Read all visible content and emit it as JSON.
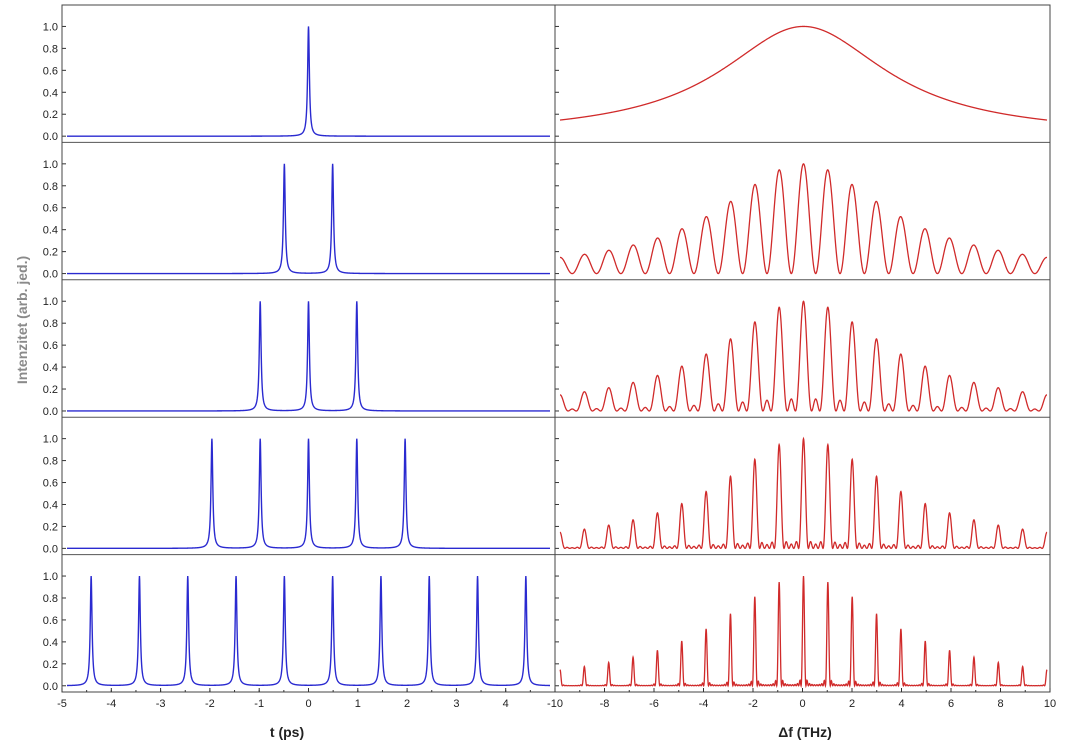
{
  "chart_data": {
    "type": "line",
    "ylabel": "Intenzitet (arb. jed.)",
    "y_ticks": [
      "0.0",
      "0.2",
      "0.4",
      "0.6",
      "0.8",
      "1.0"
    ],
    "ylim": [
      0,
      1.05
    ],
    "left": {
      "xlabel": "t (ps)",
      "xlim": [
        -5,
        5
      ],
      "x_ticks": [
        "-5",
        "-4",
        "-3",
        "-2",
        "-1",
        "0",
        "1",
        "2",
        "3",
        "4",
        "5"
      ],
      "color": "#2a2ad0"
    },
    "right": {
      "xlabel": "Δf (THz)",
      "xlim": [
        -10,
        10
      ],
      "x_ticks": [
        "-10",
        "-8",
        "-6",
        "-4",
        "-2",
        "0",
        "2",
        "4",
        "6",
        "8",
        "10"
      ],
      "color": "#d02a2a"
    },
    "rows": [
      {
        "time_pulse_peaks_ps": [
          0
        ],
        "spectrum": {
          "n_pulses": 1,
          "spacing_thz": null,
          "envelope_fwhm_thz": 8.3,
          "peak": 1.0
        }
      },
      {
        "time_pulse_peaks_ps": [
          -0.5,
          0.5
        ],
        "spectrum": {
          "n_pulses": 2,
          "spacing_thz": 1.0,
          "envelope_fwhm_thz": 8.3,
          "peak": 1.0
        }
      },
      {
        "time_pulse_peaks_ps": [
          -1,
          0,
          1
        ],
        "spectrum": {
          "n_pulses": 3,
          "spacing_thz": 1.0,
          "envelope_fwhm_thz": 8.3,
          "peak": 1.0
        }
      },
      {
        "time_pulse_peaks_ps": [
          -2,
          -1,
          0,
          1,
          2
        ],
        "spectrum": {
          "n_pulses": 5,
          "spacing_thz": 1.0,
          "envelope_fwhm_thz": 8.3,
          "peak": 1.0
        }
      },
      {
        "time_pulse_peaks_ps": [
          -4.5,
          -3.5,
          -2.5,
          -1.5,
          -0.5,
          0.5,
          1.5,
          2.5,
          3.5,
          4.5
        ],
        "spectrum": {
          "n_pulses": 10,
          "spacing_thz": 1.0,
          "envelope_fwhm_thz": 8.3,
          "peak": 1.0
        }
      }
    ]
  }
}
